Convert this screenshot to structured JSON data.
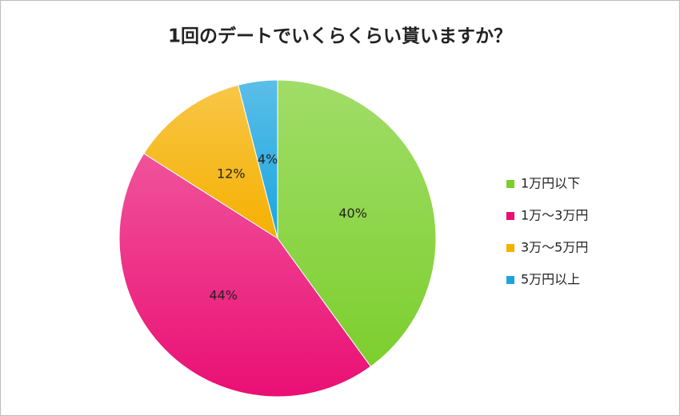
{
  "chart_data": {
    "type": "pie",
    "title": "1回のデートでいくらくらい貰いますか？",
    "categories": [
      "1万円以下",
      "1万～3万円",
      "3万～5万円",
      "5万円以上"
    ],
    "values": [
      40,
      44,
      12,
      4
    ],
    "value_labels": [
      "40%",
      "44%",
      "12%",
      "4%"
    ],
    "colors": [
      "#7ccf2e",
      "#ea0f74",
      "#f5b000",
      "#1ba5df"
    ],
    "legend": "right"
  }
}
